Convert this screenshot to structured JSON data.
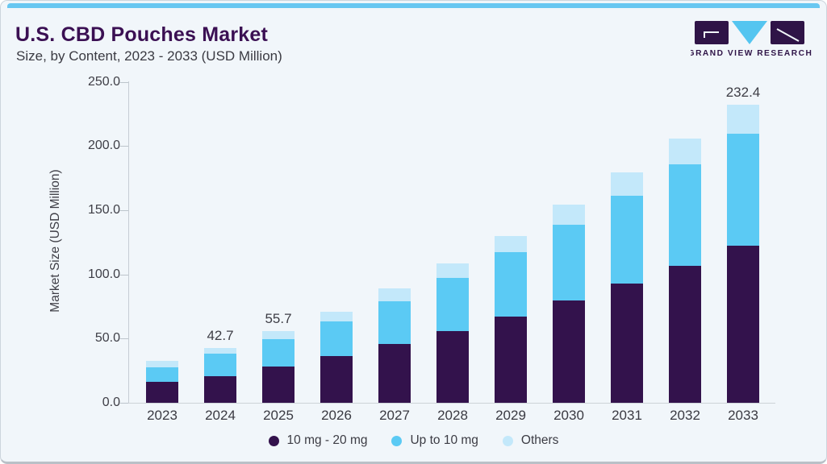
{
  "header": {
    "title": "U.S. CBD Pouches Market",
    "subtitle": "Size, by Content, 2023 - 2033 (USD Million)",
    "logo_text": "GRAND VIEW RESEARCH"
  },
  "colors": {
    "accent_strip": "#68c7f1",
    "panel_background": "#f1f6fa",
    "title_text": "#3b1053",
    "body_text": "#3a3a42",
    "axis_line": "#c6cdd4",
    "logo_purple": "#2f1447",
    "logo_blue": "#54c5f0"
  },
  "chart_data": {
    "type": "bar",
    "stacked": true,
    "title": "U.S. CBD Pouches Market Size, by Content, 2023 - 2033 (USD Million)",
    "ylabel": "Market Size (USD Million)",
    "xlabel": "",
    "ylim": [
      0,
      250
    ],
    "ytick_step": 50,
    "yticks": [
      "0.0",
      "50.0",
      "100.0",
      "150.0",
      "200.0",
      "250.0"
    ],
    "grid": false,
    "legend_position": "bottom",
    "categories": [
      "2023",
      "2024",
      "2025",
      "2026",
      "2027",
      "2028",
      "2029",
      "2030",
      "2031",
      "2032",
      "2033"
    ],
    "series": [
      {
        "name": "10 mg - 20 mg",
        "color": "#33124c",
        "values": [
          16.3,
          21.0,
          28.4,
          36.4,
          45.7,
          55.7,
          67.1,
          80.0,
          93.2,
          106.9,
          122.2
        ]
      },
      {
        "name": "Up to 10 mg",
        "color": "#5bcaf4",
        "values": [
          11.2,
          17.1,
          21.4,
          27.0,
          33.5,
          41.8,
          50.0,
          58.8,
          68.3,
          78.7,
          87.6
        ]
      },
      {
        "name": "Others",
        "color": "#c3e8fa",
        "values": [
          5.0,
          4.6,
          5.9,
          7.6,
          9.7,
          11.3,
          13.1,
          15.5,
          18.1,
          20.1,
          22.6
        ]
      }
    ],
    "totals": [
      32.5,
      42.7,
      55.7,
      71.0,
      88.9,
      108.8,
      130.2,
      154.3,
      179.6,
      205.7,
      232.4
    ],
    "bar_labels": [
      null,
      "42.7",
      "55.7",
      null,
      null,
      null,
      null,
      null,
      null,
      null,
      "232.4"
    ]
  }
}
